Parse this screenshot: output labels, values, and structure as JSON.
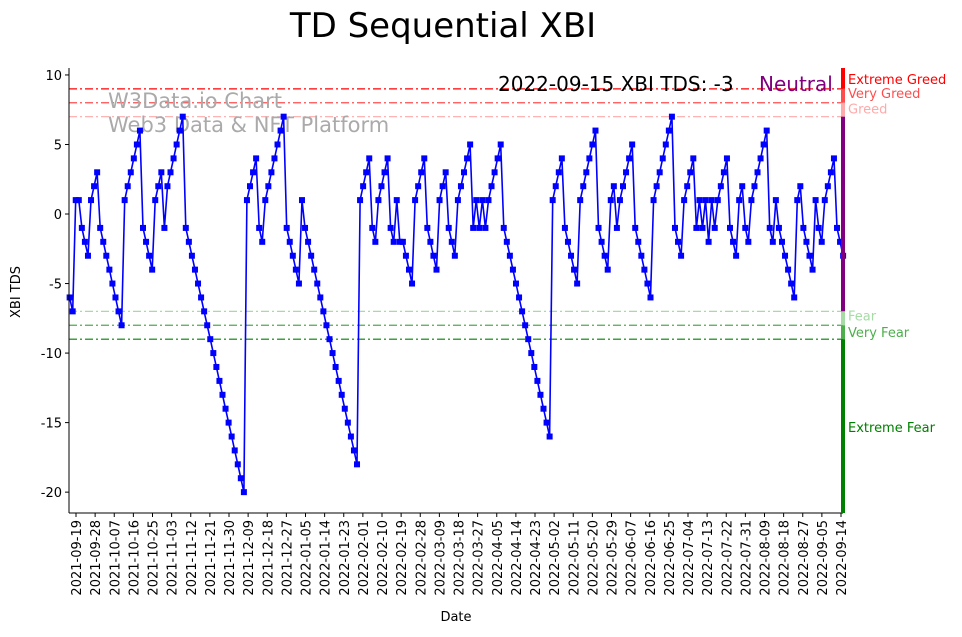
{
  "chart_data": {
    "type": "line",
    "title": "TD Sequential XBI",
    "xlabel": "Date",
    "ylabel": "XBI TDS",
    "ylim": [
      -21.5,
      10.5
    ],
    "yticks": [
      10,
      5,
      0,
      -5,
      -10,
      -15,
      -20
    ],
    "x_start": "2021-09-16",
    "x_end": "2022-09-15",
    "xticks": [
      "2021-09-19",
      "2021-09-28",
      "2021-10-07",
      "2021-10-16",
      "2021-10-25",
      "2021-11-03",
      "2021-11-12",
      "2021-11-21",
      "2021-11-30",
      "2021-12-09",
      "2021-12-18",
      "2021-12-27",
      "2022-01-05",
      "2022-01-14",
      "2022-01-23",
      "2022-02-01",
      "2022-02-10",
      "2022-02-19",
      "2022-02-28",
      "2022-03-09",
      "2022-03-18",
      "2022-03-27",
      "2022-04-05",
      "2022-04-14",
      "2022-04-23",
      "2022-05-02",
      "2022-05-11",
      "2022-05-20",
      "2022-05-29",
      "2022-06-07",
      "2022-06-16",
      "2022-06-25",
      "2022-07-04",
      "2022-07-13",
      "2022-07-22",
      "2022-07-31",
      "2022-08-09",
      "2022-08-18",
      "2022-08-27",
      "2022-09-05",
      "2022-09-14"
    ],
    "series": [
      {
        "name": "XBI TDS",
        "color": "#0000ff",
        "values": [
          -6,
          -7,
          1,
          1,
          -1,
          -2,
          -3,
          1,
          2,
          3,
          -1,
          -2,
          -3,
          -4,
          -5,
          -6,
          -7,
          -8,
          1,
          2,
          3,
          4,
          5,
          6,
          -1,
          -2,
          -3,
          -4,
          1,
          2,
          3,
          -1,
          2,
          3,
          4,
          5,
          6,
          7,
          -1,
          -2,
          -3,
          -4,
          -5,
          -6,
          -7,
          -8,
          -9,
          -10,
          -11,
          -12,
          -13,
          -14,
          -15,
          -16,
          -17,
          -18,
          -19,
          -20,
          1,
          2,
          3,
          4,
          -1,
          -2,
          1,
          2,
          3,
          4,
          5,
          6,
          7,
          -1,
          -2,
          -3,
          -4,
          -5,
          1,
          -1,
          -2,
          -3,
          -4,
          -5,
          -6,
          -7,
          -8,
          -9,
          -10,
          -11,
          -12,
          -13,
          -14,
          -15,
          -16,
          -17,
          -18,
          1,
          2,
          3,
          4,
          -1,
          -2,
          1,
          2,
          3,
          4,
          -1,
          -2,
          1,
          -2,
          -2,
          -3,
          -4,
          -5,
          1,
          2,
          3,
          4,
          -1,
          -2,
          -3,
          -4,
          1,
          2,
          3,
          -1,
          -2,
          -3,
          1,
          2,
          3,
          4,
          5,
          -1,
          1,
          -1,
          1,
          -1,
          1,
          2,
          3,
          4,
          5,
          -1,
          -2,
          -3,
          -4,
          -5,
          -6,
          -7,
          -8,
          -9,
          -10,
          -11,
          -12,
          -13,
          -14,
          -15,
          -16,
          1,
          2,
          3,
          4,
          -1,
          -2,
          -3,
          -4,
          -5,
          1,
          2,
          3,
          4,
          5,
          6,
          -1,
          -2,
          -3,
          -4,
          1,
          2,
          -1,
          1,
          2,
          3,
          4,
          5,
          -1,
          -2,
          -3,
          -4,
          -5,
          -6,
          1,
          2,
          3,
          4,
          5,
          6,
          7,
          -1,
          -2,
          -3,
          1,
          2,
          3,
          4,
          -1,
          1,
          -1,
          1,
          -2,
          1,
          -1,
          1,
          2,
          3,
          4,
          -1,
          -2,
          -3,
          1,
          2,
          -1,
          -2,
          1,
          2,
          3,
          4,
          5,
          6,
          -1,
          -2,
          1,
          -1,
          -2,
          -3,
          -4,
          -5,
          -6,
          1,
          2,
          -1,
          -2,
          -3,
          -4,
          1,
          -1,
          -2,
          1,
          2,
          3,
          4,
          -1,
          -2,
          -3
        ]
      }
    ],
    "reference_lines": [
      {
        "value": 9,
        "label": "Extreme Greed",
        "color": "#ff0000"
      },
      {
        "value": 8,
        "label": "Very Greed",
        "color": "#ff4d4d"
      },
      {
        "value": 7,
        "label": "Greed",
        "color": "#ffaaaa"
      },
      {
        "value": -7,
        "label": "Fear",
        "color": "#a6dba6"
      },
      {
        "value": -8,
        "label": "Very Fear",
        "color": "#4caf4c"
      },
      {
        "value": -9,
        "label": "Extreme Fear",
        "color": "#008000"
      }
    ],
    "neutral_color": "#800080",
    "annotation": {
      "text": "2022-09-15 XBI TDS: -3",
      "status": "Neutral"
    },
    "watermark": [
      "W3Data.io Chart",
      "Web3 Data & NFT Platform"
    ],
    "grid": false
  }
}
